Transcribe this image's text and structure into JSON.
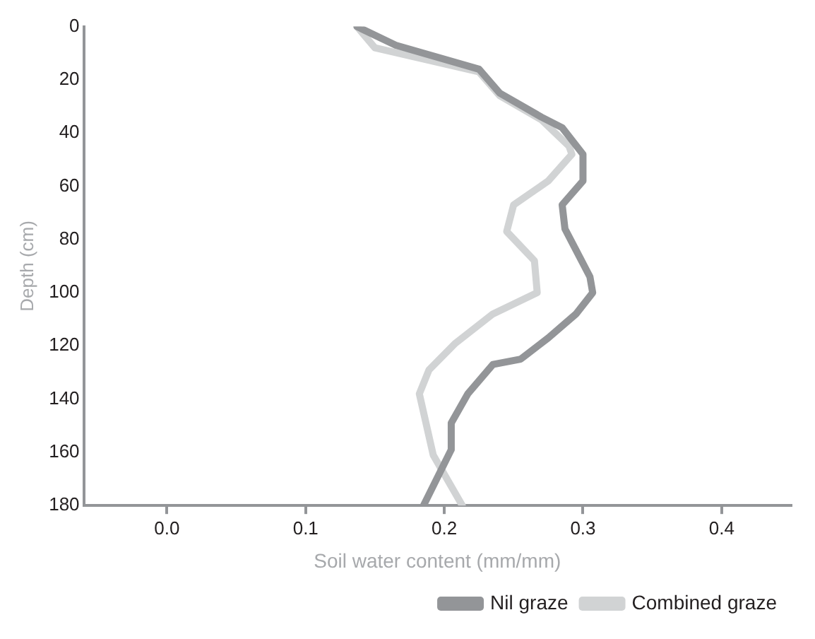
{
  "chart_data": {
    "type": "line",
    "xlabel": "Soil water content (mm/mm)",
    "ylabel": "Depth (cm)",
    "xlim": [
      -0.06,
      0.45
    ],
    "xticks": [
      {
        "value": 0,
        "label": "0.0"
      },
      0.1,
      0.2,
      0.3,
      0.4
    ],
    "ylim": [
      180,
      0
    ],
    "yticks": [
      0,
      20,
      40,
      60,
      80,
      100,
      120,
      140,
      160,
      180
    ],
    "grid": false,
    "legend": "bottom",
    "marker": "none",
    "line_style": "solid",
    "series": [
      {
        "name": "Nil graze",
        "color": "#939598",
        "x": [
          0.137,
          0.165,
          0.225,
          0.24,
          0.27,
          0.285,
          0.3,
          0.3,
          0.285,
          0.287,
          0.295,
          0.305,
          0.307,
          0.295,
          0.275,
          0.255,
          0.235,
          0.217,
          0.205,
          0.205,
          0.185
        ],
        "values": [
          0,
          7,
          16,
          25,
          34,
          38,
          48,
          58,
          67,
          76,
          84,
          94,
          100,
          108,
          117,
          125,
          127,
          138,
          149,
          159,
          180
        ]
      },
      {
        "name": "Combined graze",
        "color": "#d1d3d4",
        "x": [
          0.137,
          0.15,
          0.225,
          0.24,
          0.27,
          0.29,
          0.292,
          0.275,
          0.25,
          0.245,
          0.265,
          0.267,
          0.235,
          0.208,
          0.189,
          0.182,
          0.192,
          0.213
        ],
        "values": [
          0,
          8,
          17,
          26,
          35,
          45,
          48,
          58,
          67,
          77,
          88,
          100,
          108,
          119,
          129,
          138,
          161,
          180
        ]
      }
    ]
  }
}
